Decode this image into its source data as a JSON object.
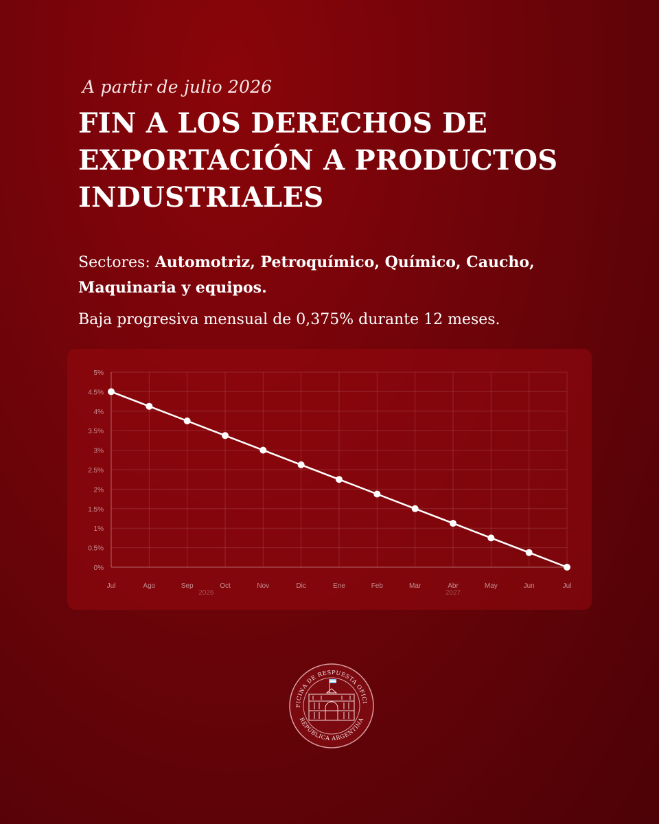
{
  "header": {
    "kicker": "A partir de julio 2026",
    "title_lines": [
      "FIN A LOS DERECHOS DE",
      "EXPORTACIÓN A PRODUCTOS",
      "INDUSTRIALES"
    ]
  },
  "sectors": {
    "label": "Sectores: ",
    "list_line1": "Automotriz, Petroquímico, Químico, Caucho,",
    "list_line2": "Maquinaria y equipos."
  },
  "note": "Baja progresiva mensual de 0,375% durante 12 meses.",
  "colors": {
    "background": "#6e0409",
    "line": "#ffffff",
    "grid": "rgba(255,255,255,0.13)"
  },
  "chart_data": {
    "type": "line",
    "categories": [
      "Jul",
      "Ago",
      "Sep",
      "Oct",
      "Nov",
      "Dic",
      "Ene",
      "Feb",
      "Mar",
      "Abr",
      "May",
      "Jun",
      "Jul"
    ],
    "year_labels": [
      {
        "text": "2026",
        "index": 2.5
      },
      {
        "text": "2027",
        "index": 9
      }
    ],
    "series": [
      {
        "values": [
          4.5,
          4.125,
          3.75,
          3.375,
          3.0,
          2.625,
          2.25,
          1.875,
          1.5,
          1.125,
          0.75,
          0.375,
          0.0
        ]
      }
    ],
    "yticks": [
      "5%",
      "4.5%",
      "4%",
      "3.5%",
      "3%",
      "2.5%",
      "2%",
      "1.5%",
      "1%",
      "0.5%",
      "0%"
    ],
    "ylim": [
      0,
      5
    ],
    "grid": true,
    "title": "",
    "xlabel": "",
    "ylabel": ""
  },
  "seal": {
    "text_top": "OFICINA DE RESPUESTA OFICIAL",
    "text_bottom": "REPÚBLICA ARGENTINA"
  }
}
